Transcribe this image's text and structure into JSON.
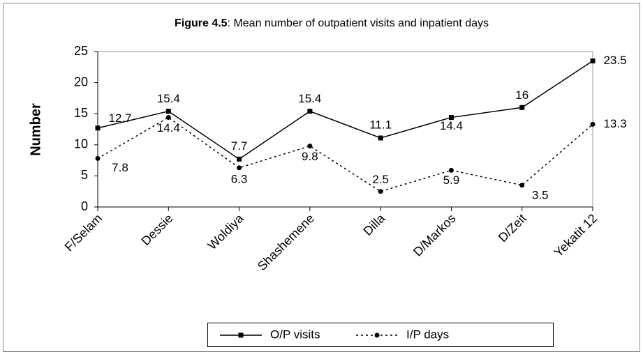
{
  "chart_data": {
    "type": "line",
    "title": "Figure 4.5: Mean number of outpatient visits and inpatient days",
    "y_label": "Number",
    "categories": [
      "F/Selam",
      "Dessie",
      "Woldiya",
      "Shashemene",
      "Dilla",
      "D/Markos",
      "D/Zeit",
      "Yekatit 12"
    ],
    "series": [
      {
        "name": "O/P visits",
        "color": "#000000",
        "style": "solid",
        "marker": "square",
        "values": [
          12.7,
          15.4,
          7.7,
          15.4,
          11.1,
          14.4,
          16,
          23.5
        ]
      },
      {
        "name": "I/P days",
        "color": "#000000",
        "style": "dotted",
        "marker": "circle",
        "values": [
          7.8,
          14.4,
          6.3,
          9.8,
          2.5,
          5.9,
          3.5,
          13.3
        ]
      }
    ],
    "ylim": [
      0,
      25
    ],
    "yticks": [
      0,
      5,
      10,
      15,
      20,
      25
    ],
    "grid": false,
    "legend": "bottom"
  }
}
